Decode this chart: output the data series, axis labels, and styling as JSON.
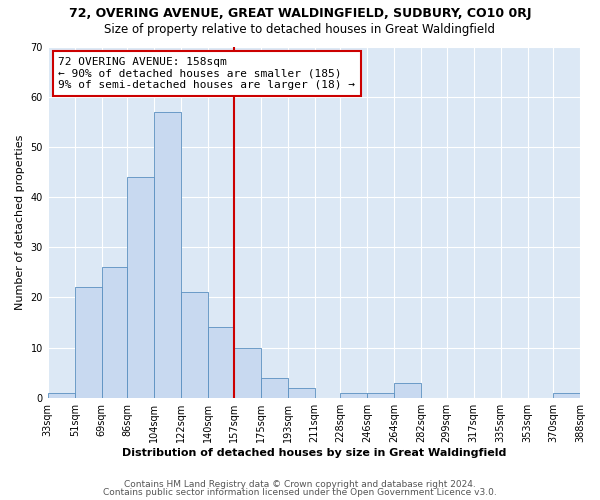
{
  "title1": "72, OVERING AVENUE, GREAT WALDINGFIELD, SUDBURY, CO10 0RJ",
  "title2": "Size of property relative to detached houses in Great Waldingfield",
  "xlabel": "Distribution of detached houses by size in Great Waldingfield",
  "ylabel": "Number of detached properties",
  "bin_labels": [
    "33sqm",
    "51sqm",
    "69sqm",
    "86sqm",
    "104sqm",
    "122sqm",
    "140sqm",
    "157sqm",
    "175sqm",
    "193sqm",
    "211sqm",
    "228sqm",
    "246sqm",
    "264sqm",
    "282sqm",
    "299sqm",
    "317sqm",
    "335sqm",
    "353sqm",
    "370sqm",
    "388sqm"
  ],
  "bin_edges": [
    33,
    51,
    69,
    86,
    104,
    122,
    140,
    157,
    175,
    193,
    211,
    228,
    246,
    264,
    282,
    299,
    317,
    335,
    353,
    370,
    388
  ],
  "bar_heights": [
    1,
    22,
    26,
    44,
    57,
    21,
    14,
    10,
    4,
    2,
    0,
    1,
    1,
    3,
    0,
    0,
    0,
    0,
    0,
    1
  ],
  "bar_color": "#c8d9f0",
  "bar_edge_color": "#5a8fc0",
  "vline_x": 157,
  "vline_color": "#cc0000",
  "annotation_line1": "72 OVERING AVENUE: 158sqm",
  "annotation_line2": "← 90% of detached houses are smaller (185)",
  "annotation_line3": "9% of semi-detached houses are larger (18) →",
  "annotation_box_color": "#ffffff",
  "annotation_box_edge": "#cc0000",
  "ylim": [
    0,
    70
  ],
  "yticks": [
    0,
    10,
    20,
    30,
    40,
    50,
    60,
    70
  ],
  "footer1": "Contains HM Land Registry data © Crown copyright and database right 2024.",
  "footer2": "Contains public sector information licensed under the Open Government Licence v3.0.",
  "bg_color": "#ffffff",
  "plot_bg_color": "#dce8f5",
  "title1_fontsize": 9,
  "title2_fontsize": 8.5,
  "axis_label_fontsize": 8,
  "tick_fontsize": 7,
  "footer_fontsize": 6.5,
  "annotation_fontsize": 8
}
